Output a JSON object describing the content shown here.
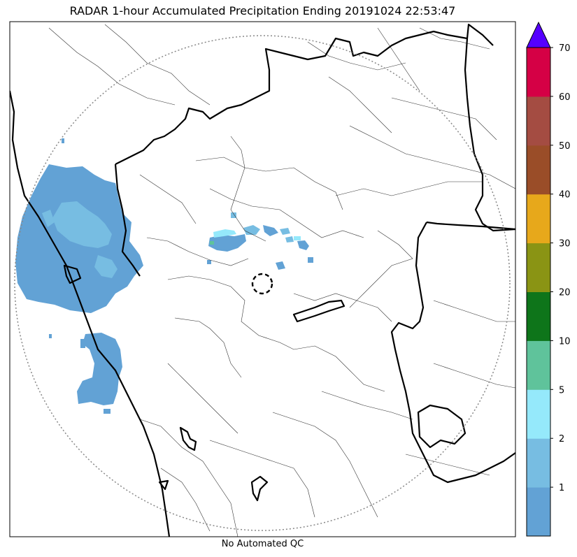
{
  "title": "RADAR 1-hour Accumulated Precipitation Ending 20191024 22:53:47",
  "footer_note": "No Automated QC",
  "colorbar": {
    "levels": [
      {
        "label": "",
        "color": "#62a2d5"
      },
      {
        "label": "1",
        "color": "#77bde2"
      },
      {
        "label": "2",
        "color": "#95e9fb"
      },
      {
        "label": "5",
        "color": "#5fc39b"
      },
      {
        "label": "10",
        "color": "#0e751a"
      },
      {
        "label": "20",
        "color": "#8a9414"
      },
      {
        "label": "30",
        "color": "#e7a81b"
      },
      {
        "label": "40",
        "color": "#9a4d28"
      },
      {
        "label": "50",
        "color": "#a44c42"
      },
      {
        "label": "60",
        "color": "#d50045"
      }
    ],
    "top_label": "70",
    "extend_color": "#5500ff"
  },
  "map": {
    "range_ring_color": "#888888",
    "radar_site_marker": "dashed-circle"
  }
}
